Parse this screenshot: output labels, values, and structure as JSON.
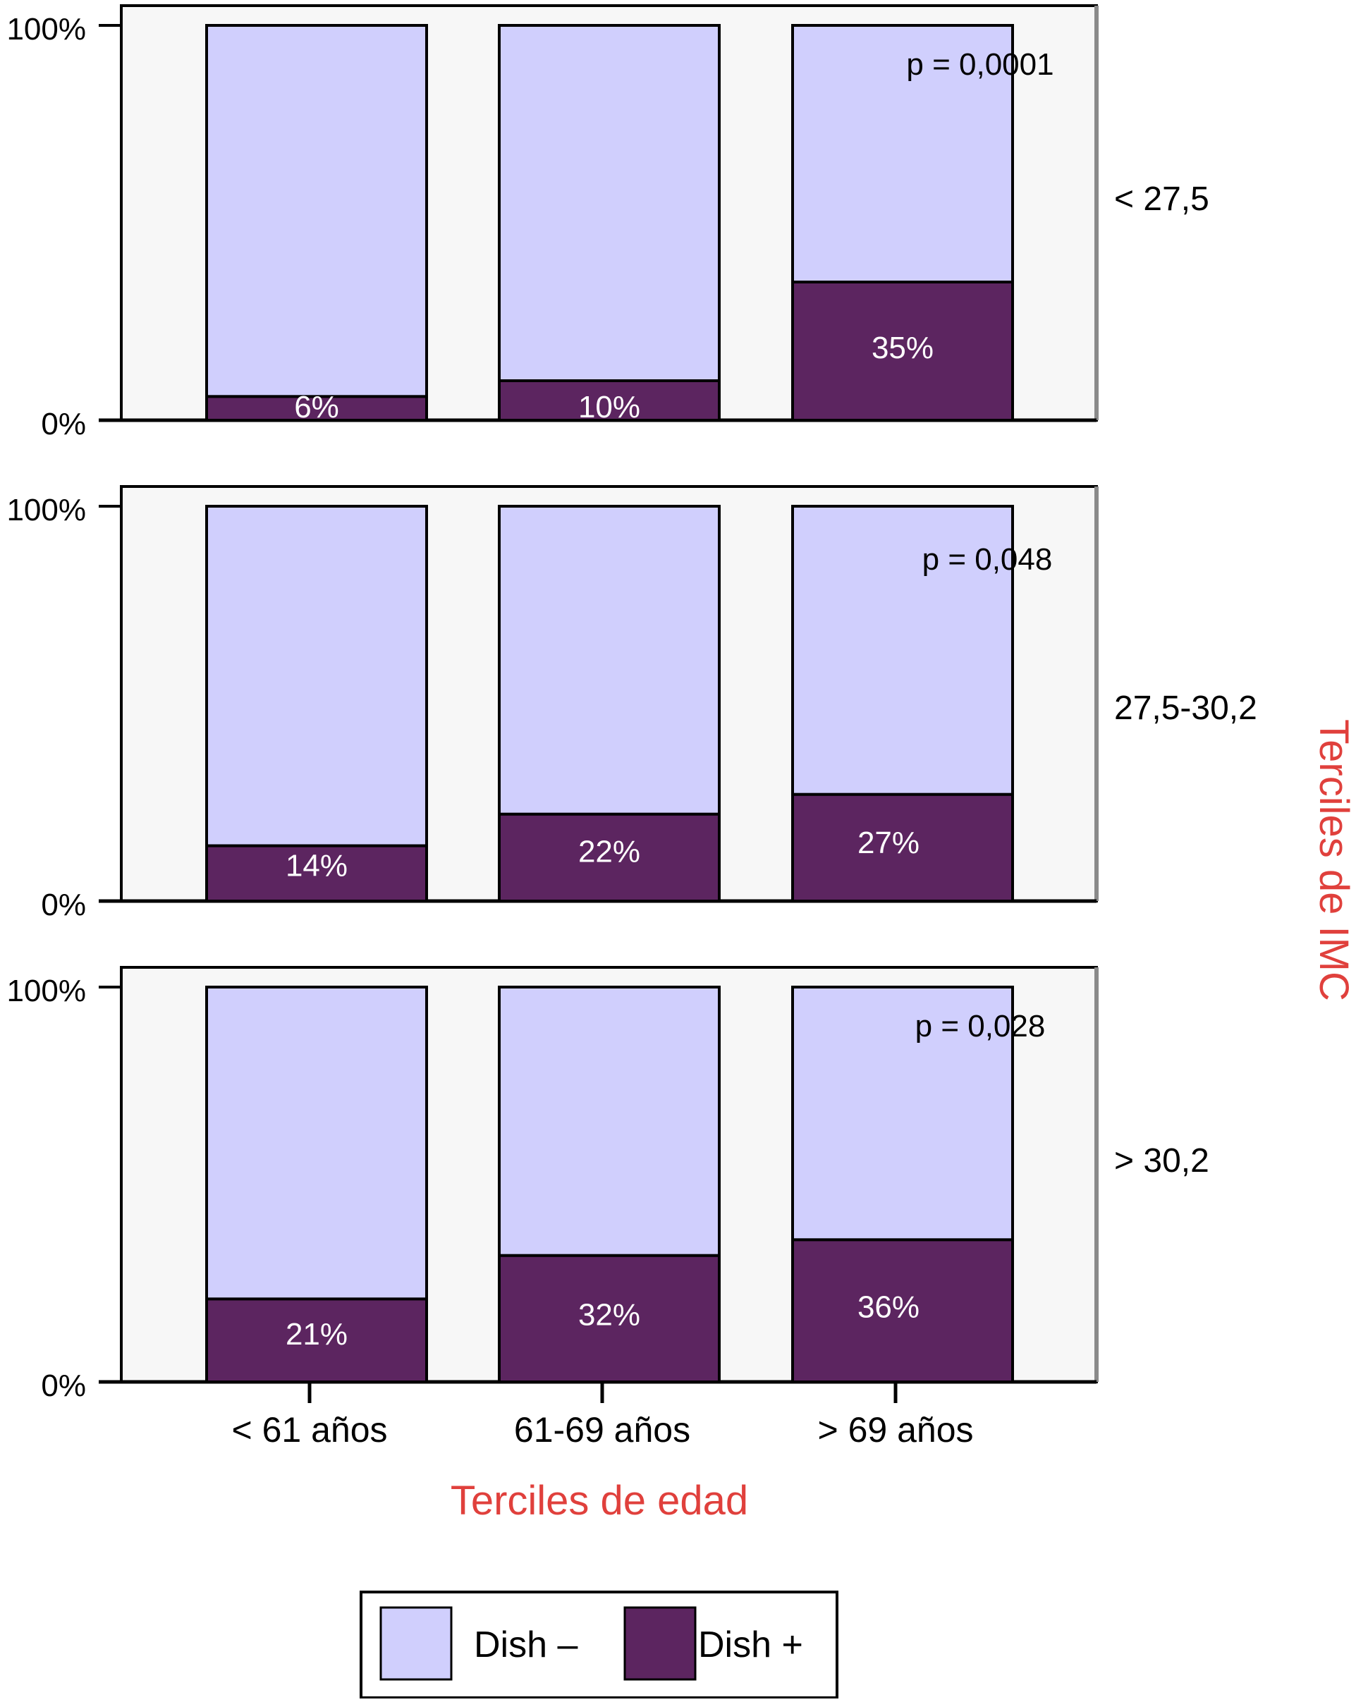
{
  "chart_data": {
    "type": "bar",
    "stacked": true,
    "percent_scale": true,
    "xlabel": "Terciles de edad",
    "ylabel": "Terciles de IMC",
    "categories": [
      "< 61 años",
      "61-69 años",
      "> 69 años"
    ],
    "y_ticks": [
      "100%",
      "0%"
    ],
    "ylim": [
      0,
      100
    ],
    "panels": [
      {
        "label": "< 27,5",
        "p_value": "p = 0,0001",
        "series": [
          {
            "name": "Dish +",
            "values": [
              6,
              10,
              35
            ],
            "labels": [
              "6%",
              "10%",
              "35%"
            ]
          },
          {
            "name": "Dish –",
            "values": [
              94,
              90,
              65
            ]
          }
        ]
      },
      {
        "label": "27,5-30,2",
        "p_value": "p = 0,048",
        "series": [
          {
            "name": "Dish +",
            "values": [
              14,
              22,
              27
            ],
            "labels": [
              "14%",
              "22%",
              "27%"
            ]
          },
          {
            "name": "Dish –",
            "values": [
              86,
              78,
              73
            ]
          }
        ]
      },
      {
        "label": "> 30,2",
        "p_value": "p = 0,028",
        "series": [
          {
            "name": "Dish +",
            "values": [
              21,
              32,
              36
            ],
            "labels": [
              "21%",
              "32%",
              "36%"
            ]
          },
          {
            "name": "Dish –",
            "values": [
              79,
              68,
              64
            ]
          }
        ]
      }
    ],
    "legend": {
      "position": "bottom-center",
      "items": [
        {
          "label": "Dish –",
          "color": "#d0cffd"
        },
        {
          "label": "Dish +",
          "color": "#5c2560"
        }
      ]
    },
    "colors": {
      "dish_minus": "#d0cffd",
      "dish_plus": "#5c2560",
      "axis_title": "#e0403c",
      "panel_bg": "#f7f7f7"
    }
  }
}
